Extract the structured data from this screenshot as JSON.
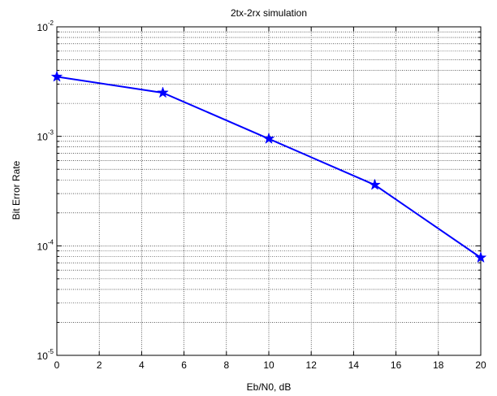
{
  "chart_data": {
    "type": "line",
    "title": "2tx-2rx simulation",
    "xlabel": "Eb/N0, dB",
    "ylabel": "Bit Error Rate",
    "xlim": [
      0,
      20
    ],
    "ylim": [
      1e-05,
      0.01
    ],
    "yscale": "log",
    "grid": true,
    "x_ticks": [
      "0",
      "2",
      "4",
      "6",
      "8",
      "10",
      "12",
      "14",
      "16",
      "18",
      "20"
    ],
    "y_ticks": [
      {
        "base": "10",
        "exp": "-5"
      },
      {
        "base": "10",
        "exp": "-4"
      },
      {
        "base": "10",
        "exp": "-3"
      },
      {
        "base": "10",
        "exp": "-2"
      }
    ],
    "series": [
      {
        "color": "#0000ff",
        "marker": "star",
        "x": [
          0,
          5,
          10,
          15,
          20
        ],
        "y": [
          0.0035,
          0.0025,
          0.00095,
          0.00036,
          7.8e-05
        ]
      }
    ]
  }
}
